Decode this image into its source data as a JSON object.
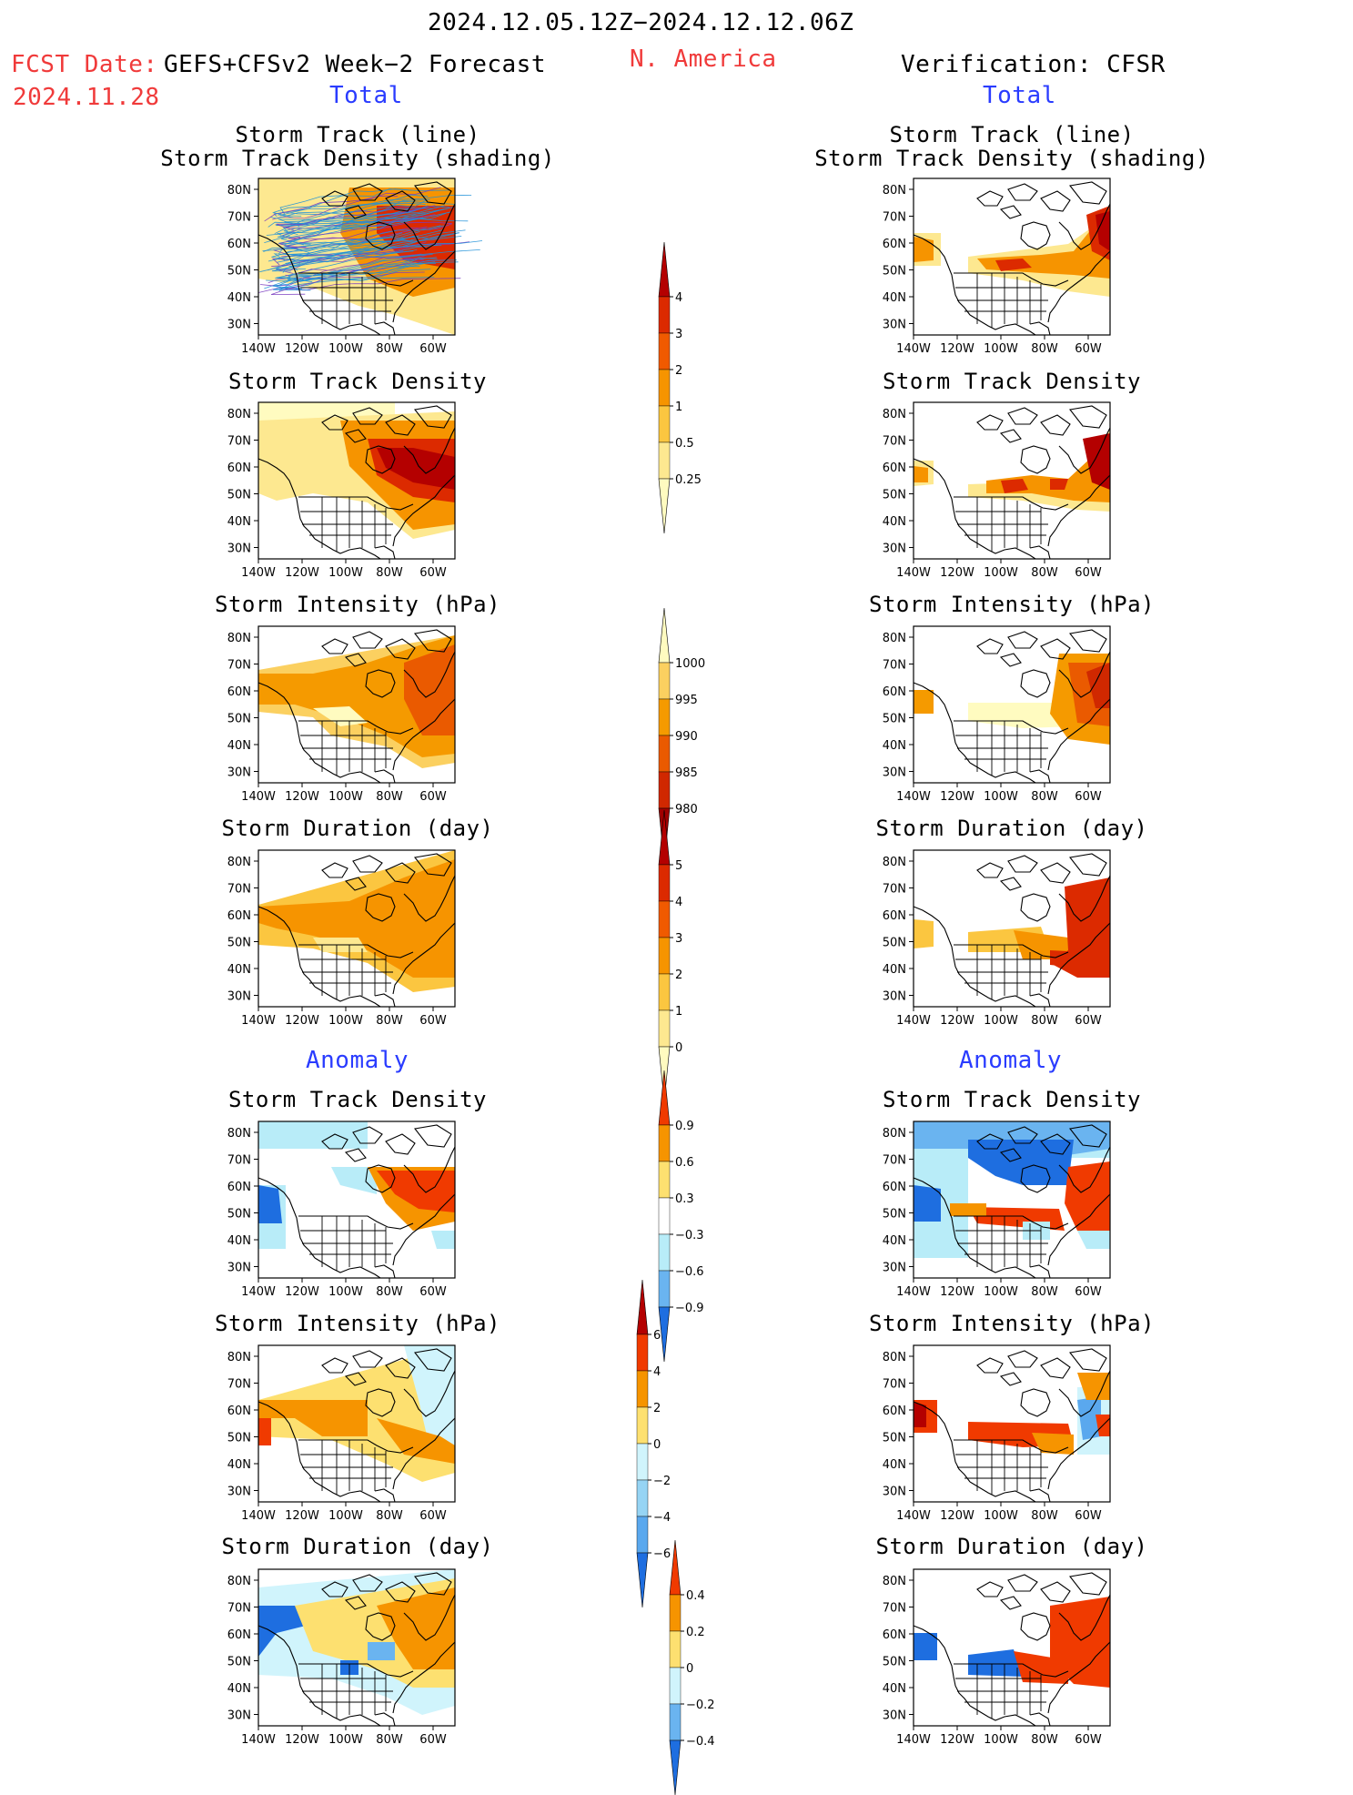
{
  "header": {
    "period": "2024.12.05.12Z−2024.12.12.06Z",
    "fcst_label": "FCST Date:",
    "fcst_source": "GEFS+CFSv2 Week−2 Forecast",
    "fcst_date": "2024.11.28",
    "region": "N. America",
    "verification": "Verification: CFSR"
  },
  "sections": {
    "total_label": "Total",
    "anomaly_label": "Anomaly"
  },
  "panel_titles": {
    "track_line": "Storm Track (line)",
    "track_shading": "Storm Track Density (shading)",
    "density": "Storm Track Density",
    "intensity": "Storm Intensity (hPa)",
    "duration": "Storm Duration (day)"
  },
  "axes": {
    "lat_labels": [
      "80N",
      "70N",
      "60N",
      "50N",
      "40N",
      "30N"
    ],
    "lon_labels": [
      "140W",
      "120W",
      "100W",
      "80W",
      "60W"
    ]
  },
  "colorbars": {
    "density_total": {
      "labels": [
        "4",
        "3",
        "2",
        "1",
        "0.5",
        "0.25"
      ],
      "colors": [
        "#b40000",
        "#dc2a00",
        "#f05a00",
        "#f69400",
        "#fbc640",
        "#fde890",
        "#fffbc0"
      ]
    },
    "intensity_total": {
      "labels": [
        "1000",
        "995",
        "990",
        "985",
        "980"
      ],
      "colors": [
        "#fffbc0",
        "#fbd060",
        "#f59a00",
        "#ea5a00",
        "#d02800",
        "#a00000"
      ]
    },
    "duration_total": {
      "labels": [
        "5",
        "4",
        "3",
        "2",
        "1",
        "0"
      ],
      "colors": [
        "#b40000",
        "#dc2a00",
        "#f05a00",
        "#f69400",
        "#fbc640",
        "#fde890",
        "#fffbc0"
      ]
    },
    "density_anom": {
      "labels": [
        "0.9",
        "0.6",
        "0.3",
        "−0.3",
        "−0.6",
        "−0.9"
      ],
      "colors": [
        "#f03a00",
        "#f69400",
        "#fde070",
        "#ffffff",
        "#b8ecf8",
        "#6ab4f0",
        "#1e6ee0"
      ]
    },
    "intensity_anom": {
      "labels": [
        "6",
        "4",
        "2",
        "0",
        "−2",
        "−4",
        "−6"
      ],
      "colors": [
        "#b40000",
        "#f03a00",
        "#f69400",
        "#fde070",
        "#d0f4fc",
        "#96d4f4",
        "#5aa8ee",
        "#1e6ee0"
      ]
    },
    "duration_anom": {
      "labels": [
        "0.4",
        "0.2",
        "0",
        "−0.2",
        "−0.4"
      ],
      "colors": [
        "#f03a00",
        "#f69400",
        "#fde070",
        "#d0f4fc",
        "#6ab4f0",
        "#1e6ee0"
      ]
    }
  },
  "colors": {
    "header_red": "#f03a3a",
    "section_blue": "#2a3cff",
    "track_line": "#1e90d8",
    "track_line_dense": "#7a3cc0"
  }
}
